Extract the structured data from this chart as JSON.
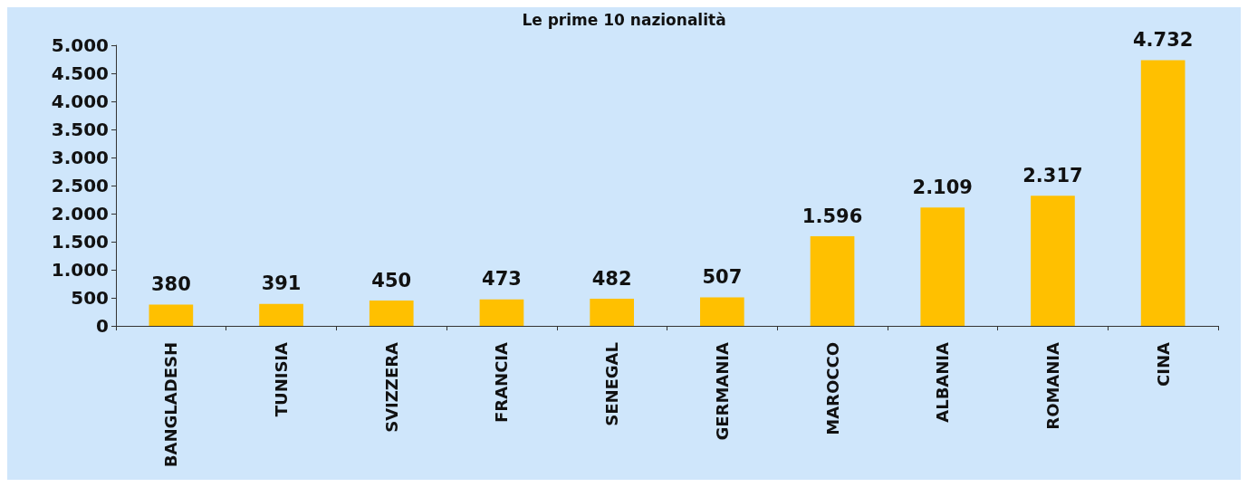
{
  "chart_data": {
    "type": "bar",
    "title": "Le prime 10 nazionalità",
    "categories": [
      "BANGLADESH",
      "TUNISIA",
      "SVIZZERA",
      "FRANCIA",
      "SENEGAL",
      "GERMANIA",
      "MAROCCO",
      "ALBANIA",
      "ROMANIA",
      "CINA"
    ],
    "values": [
      380,
      391,
      450,
      473,
      482,
      507,
      1596,
      2109,
      2317,
      4732
    ],
    "value_labels": [
      "380",
      "391",
      "450",
      "473",
      "482",
      "507",
      "1.596",
      "2.109",
      "2.317",
      "4.732"
    ],
    "color": "#ffc000",
    "ylim": [
      0,
      5000
    ],
    "yticks": [
      {
        "value": 0,
        "label": "0"
      },
      {
        "value": 500,
        "label": "500"
      },
      {
        "value": 1000,
        "label": "1.000"
      },
      {
        "value": 1500,
        "label": "1.500"
      },
      {
        "value": 2000,
        "label": "2.000"
      },
      {
        "value": 2500,
        "label": "2.500"
      },
      {
        "value": 3000,
        "label": "3.000"
      },
      {
        "value": 3500,
        "label": "3.500"
      },
      {
        "value": 4000,
        "label": "4.000"
      },
      {
        "value": 4500,
        "label": "4.500"
      },
      {
        "value": 5000,
        "label": "5.000"
      }
    ],
    "grid": false
  }
}
